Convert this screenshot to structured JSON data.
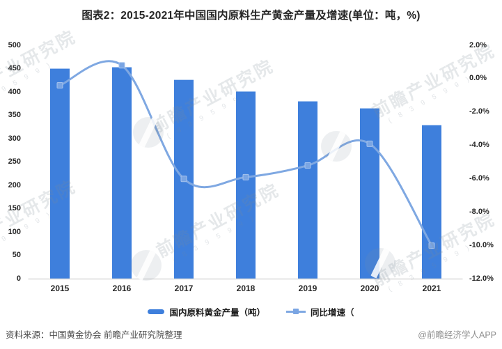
{
  "title": "图表2：2015-2021年中国国内原料生产黄金产量及增速(单位：吨，%)",
  "chart_data": {
    "type": "combo",
    "categories": [
      "2015",
      "2016",
      "2017",
      "2018",
      "2019",
      "2020",
      "2021"
    ],
    "series": [
      {
        "name": "国内原料黄金产量（吨）",
        "type": "bar",
        "axis": "left",
        "values": [
          450,
          453,
          426,
          401,
          380,
          365,
          329
        ]
      },
      {
        "name": "同比增速（",
        "type": "line",
        "axis": "right",
        "values": [
          -0.4,
          0.8,
          -6.0,
          -5.9,
          -5.2,
          -3.9,
          -10.0
        ]
      }
    ],
    "left_axis": {
      "min": 0,
      "max": 500,
      "step": 50,
      "ticks": [
        "500",
        "450",
        "400",
        "350",
        "300",
        "250",
        "200",
        "150",
        "100",
        "50",
        "0"
      ]
    },
    "right_axis": {
      "min": -12,
      "max": 2,
      "step": 2,
      "ticks": [
        "2.0%",
        "0.0%",
        "-2.0%",
        "-4.0%",
        "-6.0%",
        "-8.0%",
        "-10.0%",
        "-12.0%"
      ]
    },
    "grid": false,
    "legend_position": "bottom",
    "title": "图表2：2015-2021年中国国内原料生产黄金产量及增速(单位：吨，%)"
  },
  "colors": {
    "bar": "#3e7fdc",
    "line": "#7fa8e2",
    "marker_fill": "#7aa5e3",
    "marker_stroke": "#a5c3ee",
    "axis_line": "#d9d9d9",
    "tick_text": "#262626"
  },
  "legend": {
    "items": [
      {
        "label": "国内原料黄金产量（吨）"
      },
      {
        "label": "同比增速（"
      }
    ]
  },
  "watermark": {
    "text": "前瞻产业研究院",
    "sub": "( 8 3 9 5 9 9 )"
  },
  "footer": {
    "source": "资料来源：中国黄金协会 前瞻产业研究院整理",
    "credit": "@前瞻经济学人APP"
  }
}
